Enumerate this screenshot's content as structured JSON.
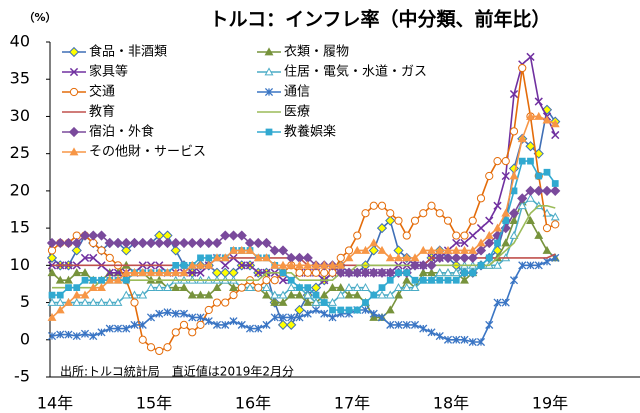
{
  "chart_data": {
    "type": "line",
    "title": "トルコ：インフレ率（中分類、前年比）",
    "unit_label": "（%）",
    "note": "出所:トルコ統計局　直近値は2019年2月分",
    "categories": [
      "14年",
      null,
      null,
      null,
      null,
      null,
      null,
      null,
      null,
      null,
      null,
      null,
      "15年",
      null,
      null,
      null,
      null,
      null,
      null,
      null,
      null,
      null,
      null,
      null,
      "16年",
      null,
      null,
      null,
      null,
      null,
      null,
      null,
      null,
      null,
      null,
      null,
      "17年",
      null,
      null,
      null,
      null,
      null,
      null,
      null,
      null,
      null,
      null,
      null,
      "18年",
      null,
      null,
      null,
      null,
      null,
      null,
      null,
      null,
      null,
      null,
      null,
      "19年",
      null
    ],
    "ylim": [
      -5,
      40
    ],
    "yticks": [
      -5,
      0,
      5,
      10,
      15,
      20,
      25,
      30,
      35,
      40
    ],
    "grid": false,
    "series": [
      {
        "name": "食品・非酒類",
        "color": "#3f6fb6",
        "marker": "diamond",
        "marker_fill": "#ffff00",
        "values": [
          11,
          10,
          10,
          12,
          14,
          13,
          12,
          13,
          13,
          12,
          13,
          13,
          13,
          14,
          14,
          12,
          10,
          9,
          10,
          10,
          9,
          9,
          9,
          10,
          10,
          9,
          9,
          5,
          2,
          2,
          4,
          6,
          7,
          8,
          9,
          10,
          9,
          9,
          10,
          12,
          15,
          16,
          12,
          11,
          10,
          10,
          11,
          12,
          11,
          10,
          9,
          9,
          10,
          11,
          12,
          16,
          23,
          27,
          26,
          25,
          30.9,
          29.3
        ]
      },
      {
        "name": "衣類・履物",
        "color": "#77933c",
        "marker": "triangle",
        "marker_fill": "#77933c",
        "values": [
          9,
          8,
          8,
          9,
          9,
          8,
          8,
          9,
          9,
          10,
          9,
          9,
          8,
          8,
          7,
          7,
          7,
          6,
          6,
          6,
          7,
          8,
          7,
          7,
          7,
          7,
          6,
          5,
          5,
          6,
          6,
          5,
          5,
          6,
          7,
          7,
          6,
          6,
          5,
          3,
          3,
          4,
          6,
          8,
          7,
          9,
          9,
          9,
          9,
          9,
          8,
          9,
          10,
          10,
          11,
          13,
          16,
          18.5,
          16,
          14,
          12,
          11
        ]
      },
      {
        "name": "家具等",
        "color": "#7030a0",
        "marker": "x",
        "marker_fill": "none",
        "values": [
          10,
          10,
          10,
          10,
          11,
          11,
          10,
          9,
          9,
          9,
          9,
          10,
          10,
          10,
          9,
          9,
          9,
          9,
          9,
          10,
          11,
          10,
          11,
          10,
          10,
          9,
          9,
          9,
          8,
          8,
          9,
          9,
          9,
          8,
          9,
          9,
          9,
          9,
          9,
          9,
          9,
          9,
          10,
          10,
          10,
          10,
          11,
          11,
          12,
          13,
          13,
          14,
          15,
          16,
          18,
          22,
          33,
          37,
          38,
          32,
          30,
          27.5
        ]
      },
      {
        "name": "住居・電気・水道・ガス",
        "color": "#4bacc6",
        "marker": "triangle",
        "marker_fill": "#ffffff",
        "values": [
          5,
          5,
          5,
          5,
          5,
          5,
          5,
          5,
          5,
          6,
          6,
          6,
          7,
          7,
          7,
          8,
          8,
          8,
          8,
          8,
          8,
          8,
          8,
          7,
          7,
          7,
          7,
          6,
          6,
          7,
          7,
          6,
          5,
          5,
          5,
          6,
          7,
          7,
          7,
          6,
          6,
          6,
          7,
          7,
          7,
          8,
          8,
          9,
          9,
          9,
          10,
          10,
          10,
          10,
          10,
          11,
          14,
          18,
          19,
          18,
          17,
          16.5
        ]
      },
      {
        "name": "交通",
        "color": "#e46c0a",
        "marker": "circle",
        "marker_fill": "#ffffff",
        "values": [
          12,
          13,
          13,
          14,
          14,
          13,
          12,
          11,
          10,
          8,
          5,
          0,
          -1,
          -1.5,
          -1,
          1,
          2,
          1,
          2,
          4,
          5,
          5,
          6,
          7,
          8,
          7,
          8,
          8,
          9,
          10,
          9,
          9,
          9,
          9,
          9,
          11,
          12,
          14,
          17,
          18,
          18,
          17,
          16,
          14,
          16,
          17,
          18,
          17,
          16,
          14,
          14,
          16,
          19,
          22,
          24,
          24,
          28,
          36.5,
          30,
          22,
          15,
          15.5
        ]
      },
      {
        "name": "通信",
        "color": "#3a75c4",
        "marker": "star",
        "marker_fill": "none",
        "values": [
          0.5,
          0.7,
          0.7,
          0.5,
          0.8,
          0.5,
          1,
          1.5,
          1.5,
          1.5,
          2,
          2,
          3,
          3.5,
          3.7,
          3.5,
          3.5,
          3,
          3,
          2.5,
          2,
          2,
          2.5,
          2,
          1.5,
          1.5,
          2,
          3,
          3,
          3,
          3,
          3.5,
          4,
          3.5,
          3,
          3.5,
          3.5,
          4,
          4,
          3.5,
          3,
          2,
          2,
          2,
          2,
          1.5,
          1,
          0.5,
          0,
          0,
          0,
          -0.3,
          -0.3,
          2,
          5,
          5,
          8,
          10,
          10,
          10,
          10.5,
          11
        ]
      },
      {
        "name": "教育",
        "color": "#c0504d",
        "marker": "none",
        "marker_fill": "none",
        "values": [
          10,
          10,
          10,
          10,
          10,
          10,
          10,
          10,
          10,
          10,
          10,
          10,
          10,
          10,
          10,
          10,
          10,
          10,
          10,
          10,
          11,
          11,
          11,
          11,
          11,
          11,
          11,
          11,
          11,
          11,
          11,
          10,
          10,
          10,
          10,
          10,
          10,
          10,
          10,
          10,
          10,
          10,
          10,
          10,
          10,
          10,
          11,
          11,
          11,
          11,
          11,
          11,
          11,
          11,
          11,
          11,
          11,
          11,
          11,
          11,
          11,
          11.5
        ]
      },
      {
        "name": "医療",
        "color": "#9bbb59",
        "marker": "none",
        "marker_fill": "none",
        "values": [
          7,
          7,
          7,
          7,
          7,
          7,
          8,
          8,
          8,
          8,
          8,
          8,
          8,
          8,
          8,
          8,
          8,
          8,
          8,
          8,
          8,
          8,
          8,
          8,
          8,
          8,
          9,
          9,
          9,
          9,
          8,
          8,
          8,
          8,
          8,
          9,
          9,
          10,
          10,
          10,
          10,
          10,
          10,
          10,
          10,
          10,
          10,
          10,
          10,
          10,
          10,
          10,
          10,
          10,
          11,
          12,
          13,
          15,
          17,
          18,
          18,
          17.7
        ]
      },
      {
        "name": "宿泊・外食",
        "color": "#7a4a9c",
        "marker": "diamond",
        "marker_fill": "#7a4a9c",
        "values": [
          13,
          13,
          13,
          13,
          14,
          14,
          14,
          13,
          13,
          13,
          13,
          13,
          13,
          13,
          13,
          13,
          13,
          13,
          13,
          13,
          13,
          14,
          14,
          14,
          13,
          13,
          13,
          12,
          12,
          11,
          11,
          11,
          10,
          10,
          10,
          9,
          9,
          9,
          9,
          9,
          9,
          9,
          9,
          9,
          10,
          10,
          10,
          11,
          11,
          11,
          11,
          11,
          12,
          13,
          14,
          15,
          17,
          19,
          20,
          20,
          20,
          20
        ]
      },
      {
        "name": "教養娯楽",
        "color": "#31a9d0",
        "marker": "square",
        "marker_fill": "#31a9d0",
        "values": [
          6,
          6,
          7,
          7,
          8,
          8,
          8,
          8,
          8,
          8,
          9,
          9,
          9,
          9,
          9,
          10,
          10,
          10,
          11,
          11,
          11,
          11,
          12,
          12,
          12,
          11,
          11,
          10,
          9,
          8,
          7,
          7,
          6,
          5,
          4,
          4,
          4,
          4,
          5,
          6,
          7,
          8,
          9,
          9,
          8,
          8,
          8,
          8,
          8,
          8,
          9,
          9,
          10,
          11,
          13,
          16,
          20,
          24,
          24,
          22,
          22.5,
          21
        ]
      },
      {
        "name": "その他財・サービス",
        "color": "#f79646",
        "marker": "triangle",
        "marker_fill": "#f79646",
        "values": [
          3,
          4,
          5,
          6,
          6,
          7,
          7,
          8,
          8,
          9,
          9,
          9,
          9,
          9,
          9,
          9,
          9,
          10,
          10,
          10,
          11,
          11,
          12,
          12,
          12,
          11,
          11,
          10,
          10,
          10,
          10,
          10,
          10,
          10,
          10,
          10,
          11,
          12,
          12,
          13,
          12,
          11,
          11,
          11,
          11,
          12,
          12,
          12,
          12,
          12,
          12,
          12,
          13,
          14,
          15,
          17,
          22,
          27,
          30,
          30,
          29.5,
          29
        ]
      }
    ]
  }
}
